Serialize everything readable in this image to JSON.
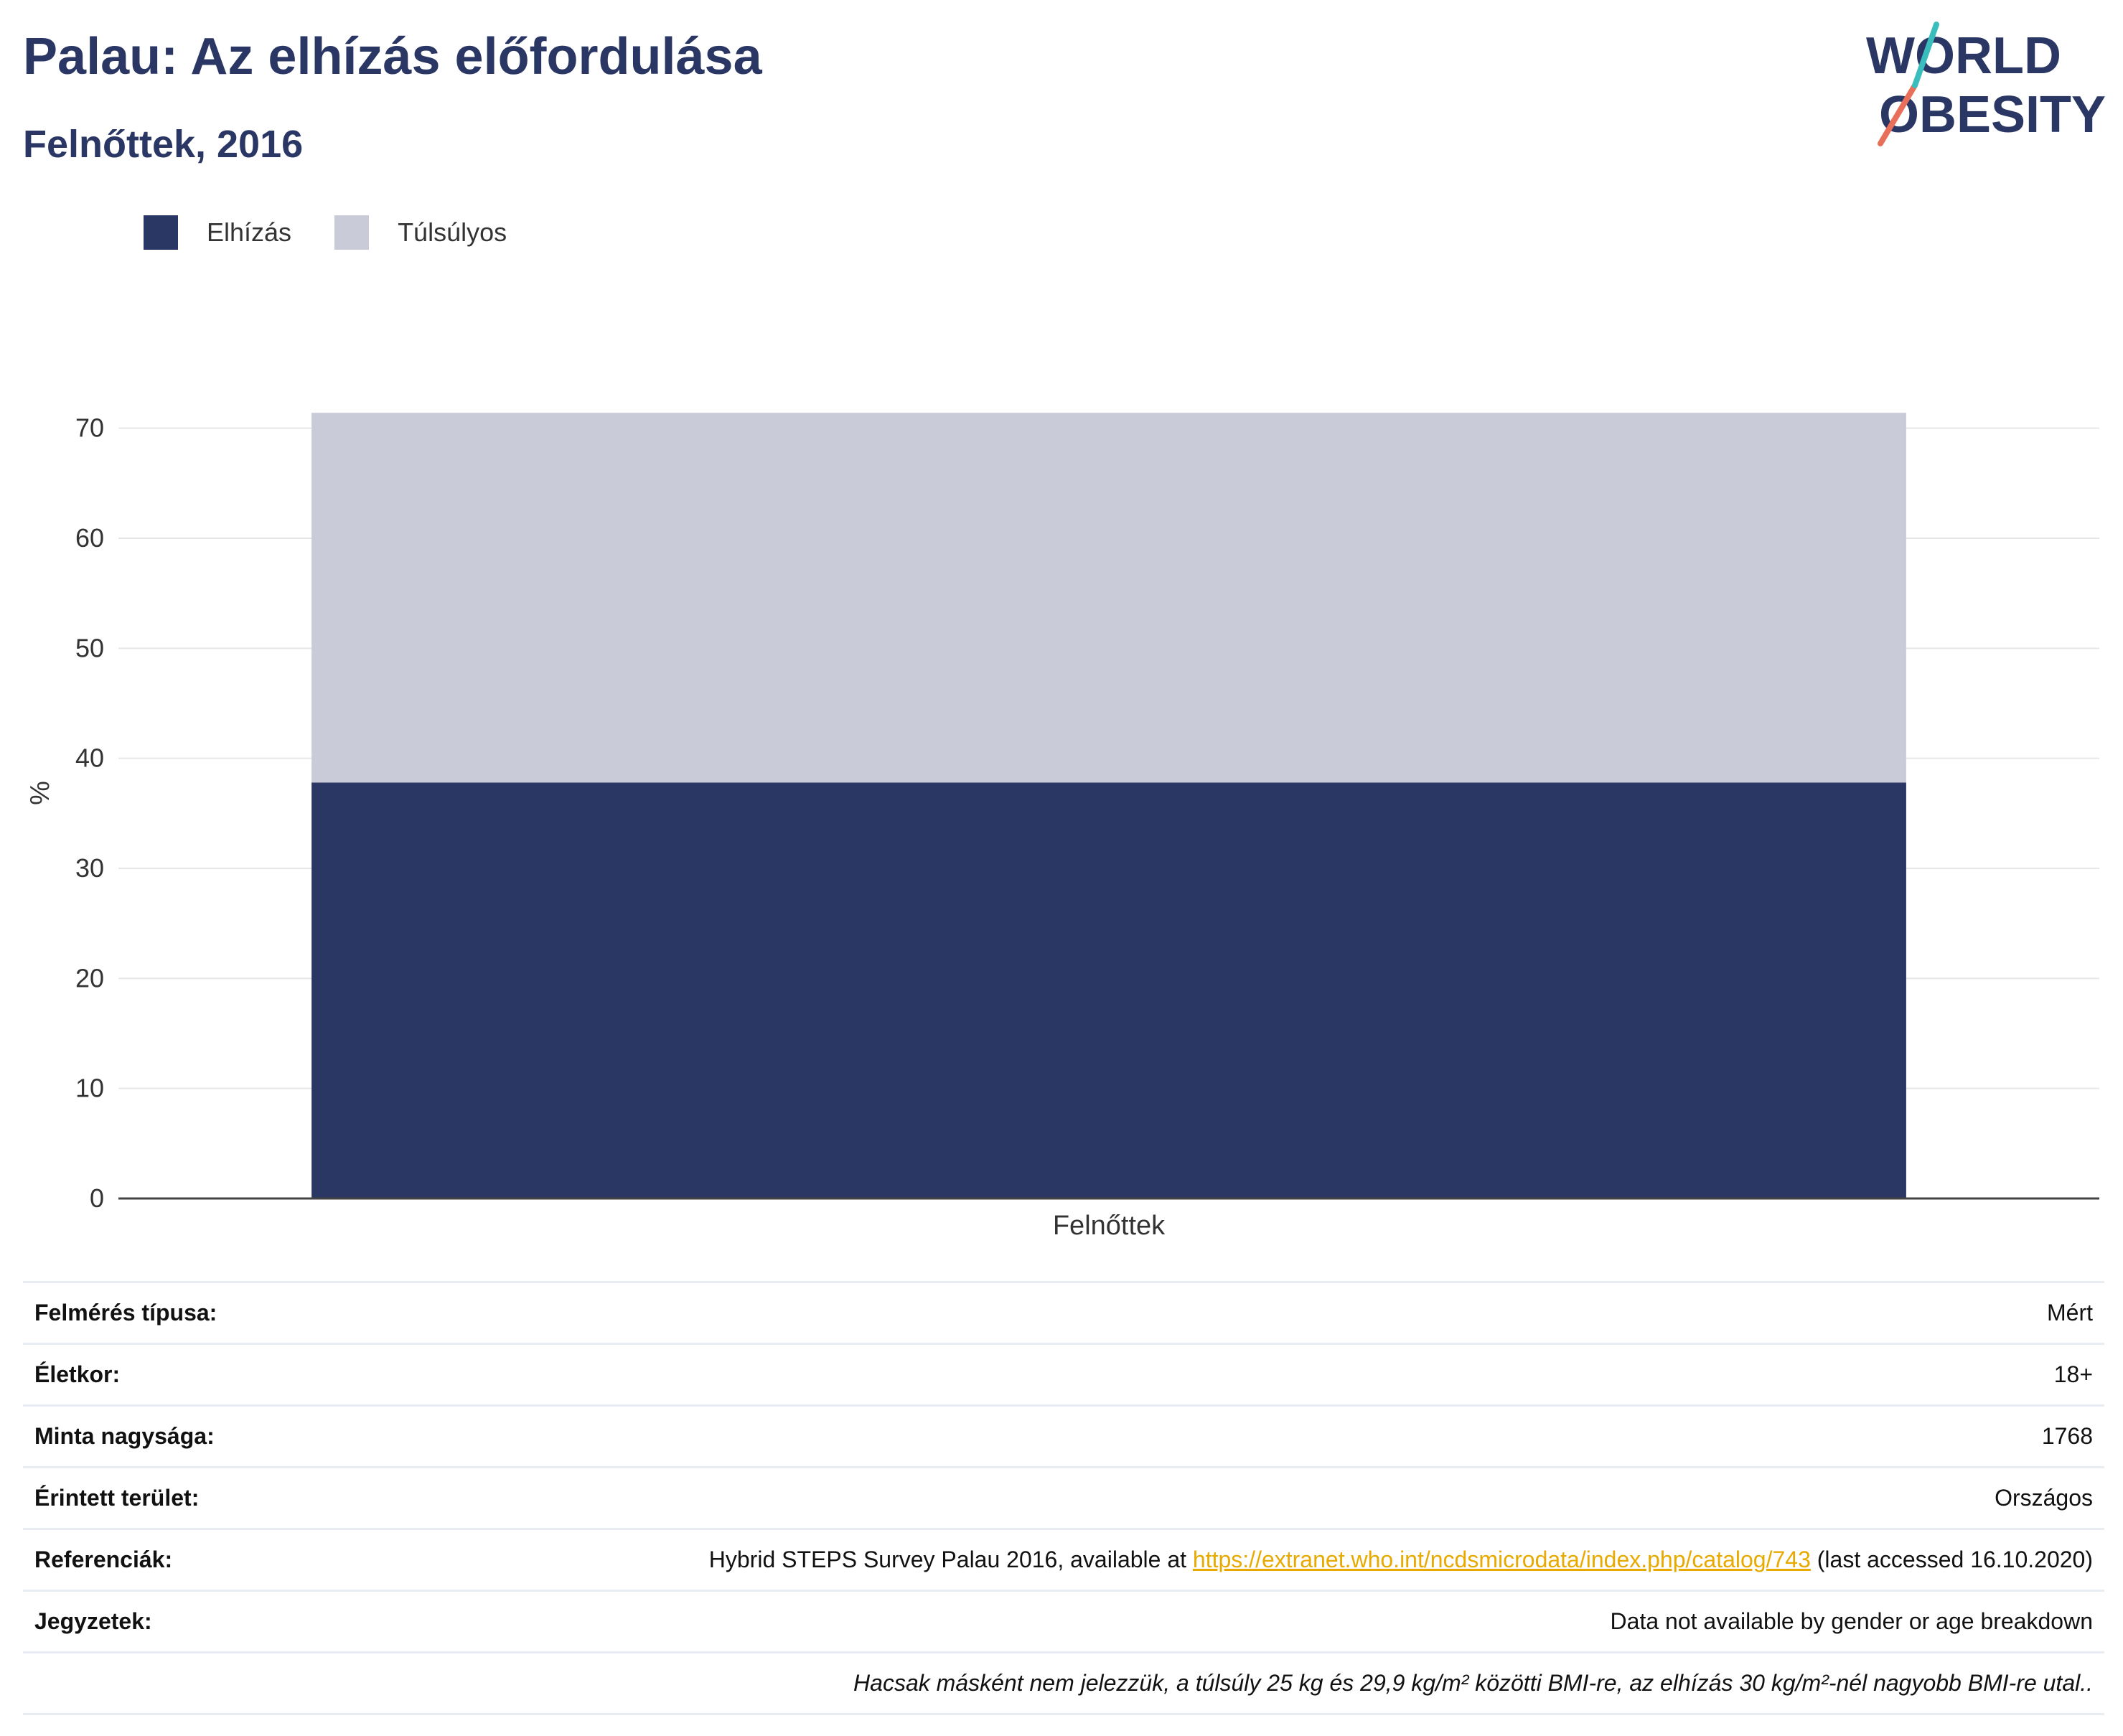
{
  "title": "Palau: Az elhízás előfordulása",
  "subtitle": "Felnőttek, 2016",
  "logo": {
    "line1": "WORLD",
    "line2": "OBESITY"
  },
  "legend": [
    {
      "label": "Elhízás",
      "color": "#2a3663"
    },
    {
      "label": "Túlsúlyos",
      "color": "#c9ccd8"
    }
  ],
  "chart_data": {
    "type": "bar",
    "stacked": true,
    "categories": [
      "Felnőttek"
    ],
    "series": [
      {
        "name": "Elhízás",
        "values": [
          37.8
        ],
        "color": "#2a3663"
      },
      {
        "name": "Túlsúlyos",
        "values": [
          33.6
        ],
        "color": "#c9ccd8"
      }
    ],
    "ylabel": "%",
    "xlabel": "",
    "ylim": [
      0,
      75
    ],
    "yticks": [
      0,
      10,
      20,
      30,
      40,
      50,
      60,
      70
    ],
    "grid": true
  },
  "info": {
    "survey_type": {
      "key": "Felmérés típusa:",
      "value": "Mért"
    },
    "age": {
      "key": "Életkor:",
      "value": "18+"
    },
    "sample": {
      "key": "Minta nagysága:",
      "value": "1768"
    },
    "area": {
      "key": "Érintett terület:",
      "value": "Országos"
    },
    "references": {
      "key": "Referenciák:",
      "prefix": "Hybrid STEPS Survey Palau 2016, available at ",
      "link": "https://extranet.who.int/ncdsmicrodata/index.php/catalog/743",
      "suffix": " (last accessed 16.10.2020)"
    },
    "notes": {
      "key": "Jegyzetek:",
      "value": "Data not available by gender or age breakdown"
    },
    "footnote": "Hacsak másként nem jelezzük, a túlsúly 25 kg és 29,9 kg/m² közötti BMI-re, az elhízás 30 kg/m²-nél nagyobb BMI-re utal.."
  }
}
